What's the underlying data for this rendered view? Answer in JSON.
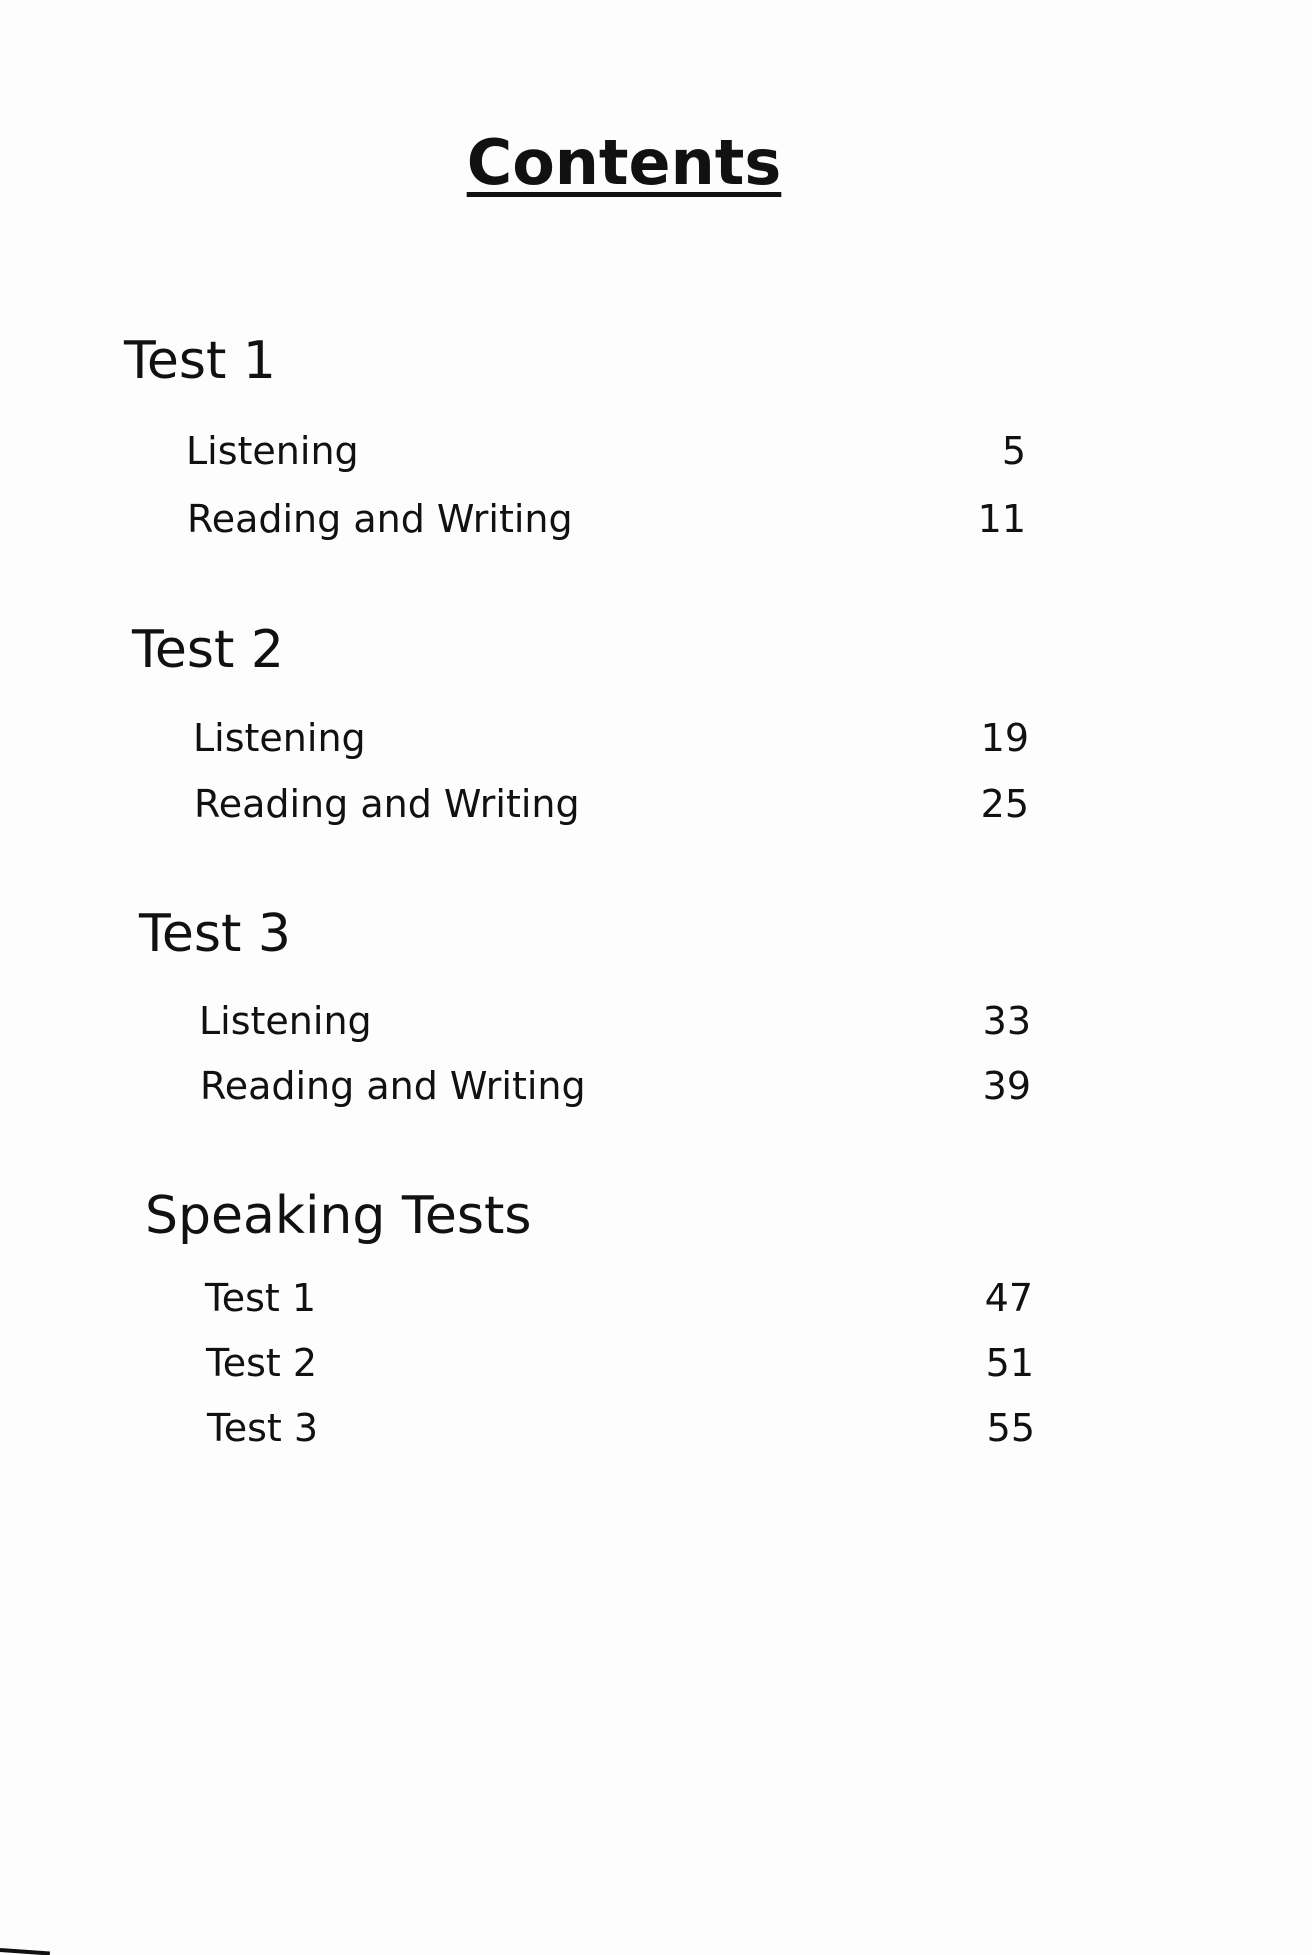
{
  "title": "Contents",
  "sections": [
    {
      "heading": "Test 1",
      "items": [
        {
          "label": "Listening",
          "page": "5"
        },
        {
          "label": "Reading and Writing",
          "page": "11"
        }
      ]
    },
    {
      "heading": "Test 2",
      "items": [
        {
          "label": "Listening",
          "page": "19"
        },
        {
          "label": "Reading and Writing",
          "page": "25"
        }
      ]
    },
    {
      "heading": "Test 3",
      "items": [
        {
          "label": "Listening",
          "page": "33"
        },
        {
          "label": "Reading and Writing",
          "page": "39"
        }
      ]
    },
    {
      "heading": "Speaking Tests",
      "items": [
        {
          "label": "Test 1",
          "page": "47"
        },
        {
          "label": "Test 2",
          "page": "51"
        },
        {
          "label": "Test 3",
          "page": "55"
        }
      ]
    }
  ]
}
